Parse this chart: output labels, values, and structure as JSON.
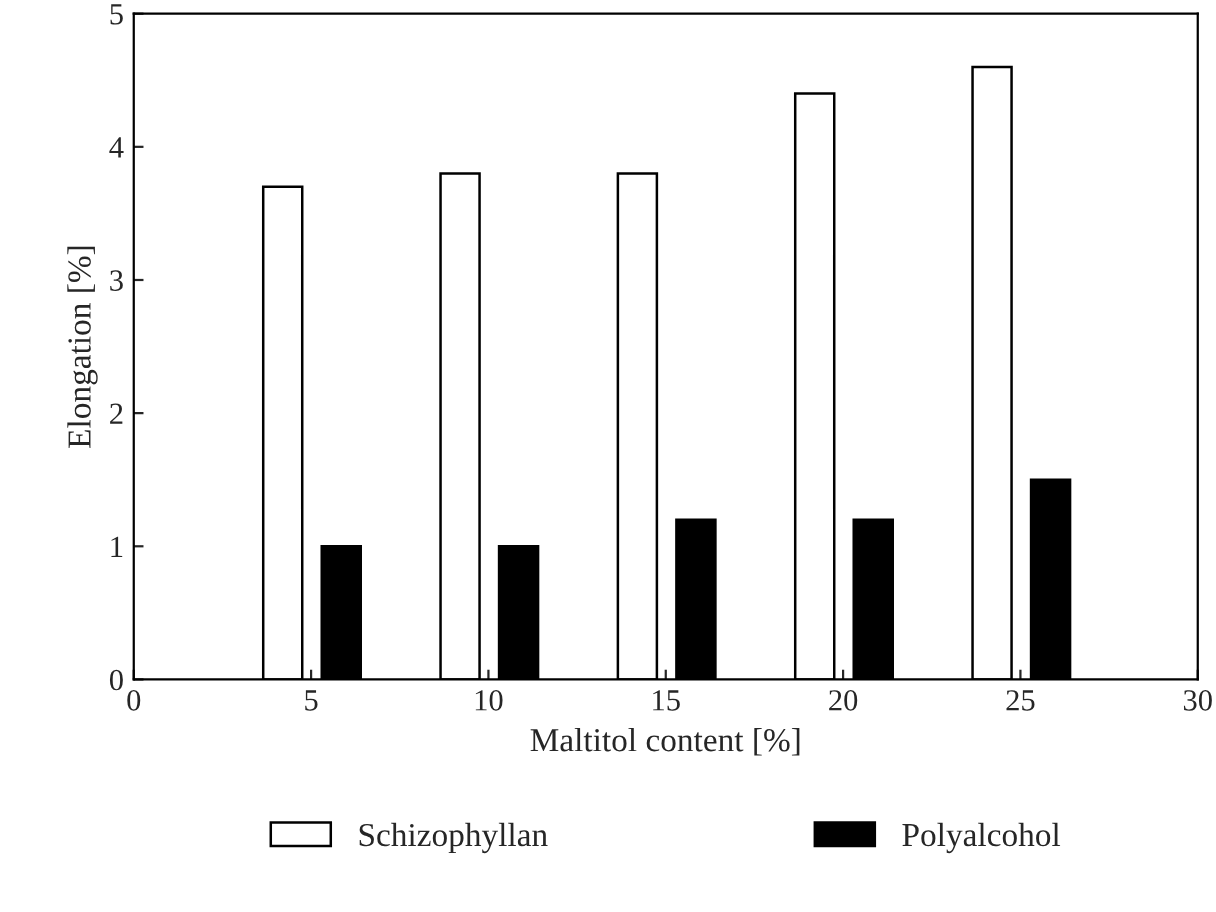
{
  "chart_data": {
    "type": "bar",
    "xlabel": "Maltitol content [%]",
    "ylabel": "Elongation [%]",
    "xlim": [
      0,
      30
    ],
    "xticks": [
      0,
      5,
      10,
      15,
      20,
      25,
      30
    ],
    "ylim": [
      0,
      5
    ],
    "yticks": [
      0,
      1,
      2,
      3,
      4,
      5
    ],
    "grid": false,
    "legend": "bottom",
    "series": [
      {
        "name": "Schizophyllan",
        "color": "#ffffff",
        "x": [
          4.2,
          9.2,
          14.2,
          19.2,
          24.2
        ],
        "values": [
          3.7,
          3.8,
          3.8,
          4.4,
          4.6
        ]
      },
      {
        "name": "Polyalcohol",
        "color": "#000000",
        "x": [
          5.85,
          10.85,
          15.85,
          20.85,
          25.85
        ],
        "values": [
          1.0,
          1.0,
          1.2,
          1.2,
          1.5
        ]
      }
    ]
  }
}
